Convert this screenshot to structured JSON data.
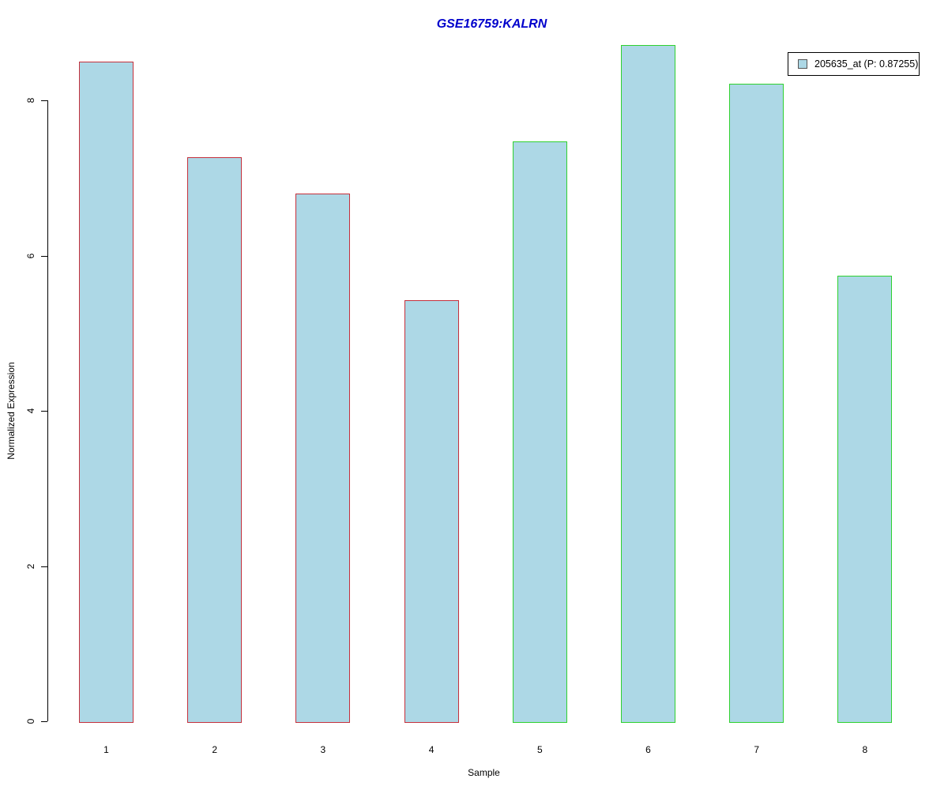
{
  "chart_data": {
    "type": "bar",
    "title": "GSE16759:KALRN",
    "title_color": "#0000cc",
    "xlabel": "Sample",
    "ylabel": "Normalized Expression",
    "categories": [
      "1",
      "2",
      "3",
      "4",
      "5",
      "6",
      "7",
      "8"
    ],
    "values": [
      8.5,
      7.27,
      6.8,
      5.42,
      7.47,
      8.71,
      8.21,
      5.74
    ],
    "bar_fill": "#add8e6",
    "bar_border_groups": [
      "red",
      "red",
      "red",
      "red",
      "green",
      "green",
      "green",
      "green"
    ],
    "group_colors": {
      "red": "#c4303c",
      "green": "#2fd12f"
    },
    "yticks": [
      0,
      2,
      4,
      6,
      8
    ],
    "ylim": [
      0,
      8.8
    ],
    "grid": false,
    "legend": {
      "label": "205635_at (P: 0.87255)",
      "position": "top-right",
      "swatch_fill": "#add8e6"
    }
  }
}
